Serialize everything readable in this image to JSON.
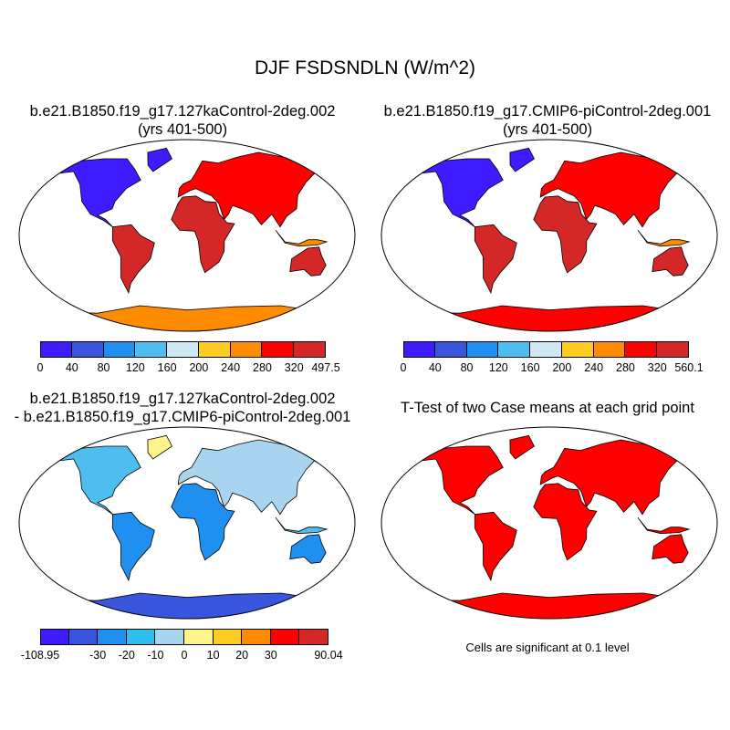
{
  "title": "DJF FSDSNDLN (W/m^2)",
  "panels": [
    {
      "id": "top-left",
      "title_lines": [
        "b.e21.B1850.f19_g17.127kaControl-2deg.002",
        "(yrs 401-500)"
      ]
    },
    {
      "id": "top-right",
      "title_lines": [
        "b.e21.B1850.f19_g17.CMIP6-piControl-2deg.001",
        "(yrs 401-500)"
      ]
    },
    {
      "id": "bottom-left",
      "title_lines": [
        "b.e21.B1850.f19_g17.127kaControl-2deg.002",
        "- b.e21.B1850.f19_g17.CMIP6-piControl-2deg.001"
      ]
    },
    {
      "id": "bottom-right",
      "title_lines": [
        "T-Test of two Case means at each grid point"
      ]
    }
  ],
  "colorbars": [
    {
      "id": "cb-top-left",
      "colors": [
        "#3f1cff",
        "#3a55dd",
        "#1f8ff0",
        "#4ebdf0",
        "#cfe8f5",
        "#ffcc22",
        "#ff8c00",
        "#ff0000",
        "#d42828"
      ],
      "labels": [
        "0",
        "40",
        "80",
        "120",
        "160",
        "200",
        "240",
        "280",
        "320",
        "497.5"
      ]
    },
    {
      "id": "cb-top-right",
      "colors": [
        "#3f1cff",
        "#3a55dd",
        "#1f8ff0",
        "#4ebdf0",
        "#cfe8f5",
        "#ffcc22",
        "#ff8c00",
        "#ff0000",
        "#d42828"
      ],
      "labels": [
        "0",
        "40",
        "80",
        "120",
        "160",
        "200",
        "240",
        "280",
        "320",
        "560.1"
      ]
    },
    {
      "id": "cb-bottom-left",
      "colors": [
        "#3f1cff",
        "#3a55dd",
        "#1f8ff0",
        "#2fbef0",
        "#a8d4ef",
        "#fff48a",
        "#ffcc22",
        "#ff8c00",
        "#ff0000",
        "#d42828"
      ],
      "labels": [
        "-108.95",
        "-30",
        "-20",
        "-10",
        "0",
        "10",
        "20",
        "30",
        "90.04"
      ],
      "label_at": [
        0,
        2,
        3,
        4,
        5,
        6,
        7,
        8,
        10
      ]
    }
  ],
  "significance_note": "Cells are significant at 0.1 level",
  "map_colors": {
    "ocean": "#ffffff",
    "coast": "#000000",
    "signif": "#ff0000"
  }
}
